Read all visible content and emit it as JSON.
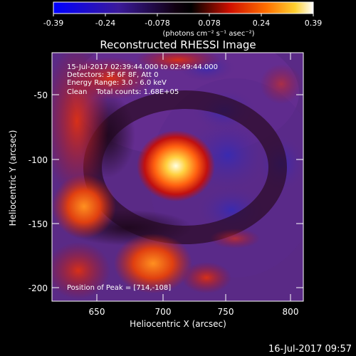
{
  "colorbar": {
    "ticks": [
      "-0.39",
      "-0.24",
      "-0.078",
      "0.078",
      "0.24",
      "0.39"
    ],
    "units": "(photons cm⁻² s⁻¹ asec⁻²)"
  },
  "title": "Reconstructed RHESSI Image",
  "annotations": {
    "time": "15-Jul-2017 02:39:44.000 to 02:49:44.000",
    "detectors": "Detectors: 3F 6F 8F, Att 0",
    "energy": "Energy Range: 3.0 - 6.0 keV",
    "clean": "Clean    Total counts: 1.68E+05",
    "peak": "Position of Peak = [714,-108]"
  },
  "axes": {
    "xlabel": "Heliocentric X (arcsec)",
    "ylabel": "Heliocentric Y (arcsec)",
    "xticks": [
      "650",
      "700",
      "750",
      "800"
    ],
    "yticks": [
      "-50",
      "-100",
      "-150",
      "-200"
    ]
  },
  "footer": {
    "timestamp": "16-Jul-2017 09:57"
  },
  "palette": [
    "#0000ff",
    "#4a0080",
    "#2a0030",
    "#000000",
    "#d00000",
    "#ff5000",
    "#ffb000",
    "#ffffff"
  ]
}
